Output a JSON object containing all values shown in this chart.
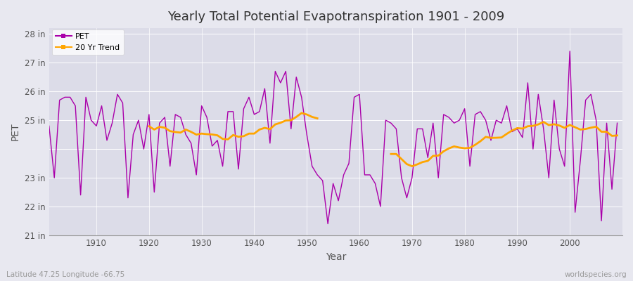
{
  "title": "Yearly Total Potential Evapotranspiration 1901 - 2009",
  "xlabel": "Year",
  "ylabel": "PET",
  "subtitle_lat_lon": "Latitude 47.25 Longitude -66.75",
  "watermark": "worldspecies.org",
  "pet_color": "#AA00AA",
  "trend_color": "#FFA500",
  "fig_bg_color": "#E8E8F0",
  "plot_bg_color": "#DCDCE8",
  "grid_color": "#FFFFFF",
  "ylim": [
    21,
    28.2
  ],
  "ytick_vals": [
    21,
    22,
    23,
    24,
    25,
    26,
    27,
    28
  ],
  "ytick_labels": [
    "21 in",
    "22 in",
    "23 in",
    "",
    "25 in",
    "26 in",
    "27 in",
    "28 in"
  ],
  "xlim": [
    1901,
    2010
  ],
  "xtick_vals": [
    1910,
    1920,
    1930,
    1940,
    1950,
    1960,
    1970,
    1980,
    1990,
    2000
  ],
  "years": [
    1901,
    1902,
    1903,
    1904,
    1905,
    1906,
    1907,
    1908,
    1909,
    1910,
    1911,
    1912,
    1913,
    1914,
    1915,
    1916,
    1917,
    1918,
    1919,
    1920,
    1921,
    1922,
    1923,
    1924,
    1925,
    1926,
    1927,
    1928,
    1929,
    1930,
    1931,
    1932,
    1933,
    1934,
    1935,
    1936,
    1937,
    1938,
    1939,
    1940,
    1941,
    1942,
    1943,
    1944,
    1945,
    1946,
    1947,
    1948,
    1949,
    1950,
    1951,
    1952,
    1953,
    1954,
    1955,
    1956,
    1957,
    1958,
    1959,
    1960,
    1961,
    1962,
    1963,
    1964,
    1965,
    1966,
    1967,
    1968,
    1969,
    1970,
    1971,
    1972,
    1973,
    1974,
    1975,
    1976,
    1977,
    1978,
    1979,
    1980,
    1981,
    1982,
    1983,
    1984,
    1985,
    1986,
    1987,
    1988,
    1989,
    1990,
    1991,
    1992,
    1993,
    1994,
    1995,
    1996,
    1997,
    1998,
    1999,
    2000,
    2001,
    2002,
    2003,
    2004,
    2005,
    2006,
    2007,
    2008,
    2009
  ],
  "pet_values": [
    24.8,
    23.0,
    25.7,
    25.8,
    25.8,
    25.5,
    22.4,
    25.8,
    25.0,
    24.8,
    25.5,
    24.3,
    24.9,
    25.9,
    25.6,
    22.3,
    24.5,
    25.0,
    24.0,
    25.2,
    22.5,
    24.9,
    25.1,
    23.4,
    25.2,
    25.1,
    24.5,
    24.2,
    23.1,
    25.5,
    25.1,
    24.1,
    24.3,
    23.4,
    25.3,
    25.3,
    23.3,
    25.4,
    25.8,
    25.2,
    25.3,
    26.1,
    24.2,
    26.7,
    26.3,
    26.7,
    24.7,
    26.5,
    25.8,
    24.5,
    23.4,
    23.1,
    22.9,
    21.4,
    22.8,
    22.2,
    23.1,
    23.5,
    25.8,
    25.9,
    23.1,
    23.1,
    22.8,
    22.0,
    25.0,
    24.9,
    24.7,
    23.0,
    22.3,
    23.0,
    24.7,
    24.7,
    23.7,
    24.9,
    23.0,
    25.2,
    25.1,
    24.9,
    25.0,
    25.4,
    23.4,
    25.2,
    25.3,
    25.0,
    24.3,
    25.0,
    24.9,
    25.5,
    24.6,
    24.7,
    24.4,
    26.3,
    24.0,
    25.9,
    24.7,
    23.0,
    25.7,
    24.0,
    23.4,
    27.4,
    21.8,
    23.6,
    25.7,
    25.9,
    25.0,
    21.5,
    24.9,
    22.6,
    24.9
  ],
  "trend_window": 20,
  "trend_gap_start": 1953,
  "trend_gap_end": 1965
}
